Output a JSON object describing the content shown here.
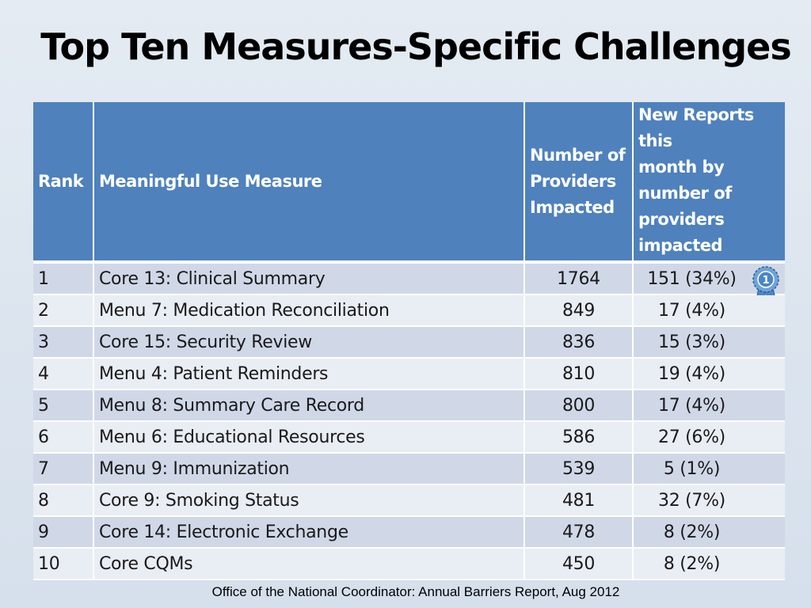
{
  "title": "Top Ten Measures-Specific Challenges",
  "table": {
    "headers": {
      "rank": "Rank",
      "measure": "Meaningful Use Measure",
      "providers": [
        "Number of",
        "Providers",
        "Impacted"
      ],
      "new_reports": [
        "New Reports this",
        "month by",
        "number of",
        "providers",
        "impacted"
      ]
    },
    "rows": [
      {
        "rank": "1",
        "measure": "Core 13: Clinical Summary",
        "providers": "1764",
        "new_reports": "151 (34%)"
      },
      {
        "rank": "2",
        "measure": "Menu 7: Medication Reconciliation",
        "providers": "849",
        "new_reports": "17 (4%)"
      },
      {
        "rank": "3",
        "measure": "Core 15: Security Review",
        "providers": "836",
        "new_reports": "15 (3%)"
      },
      {
        "rank": "4",
        "measure": "Menu 4: Patient Reminders",
        "providers": "810",
        "new_reports": "19 (4%)"
      },
      {
        "rank": "5",
        "measure": "Menu 8: Summary Care Record",
        "providers": "800",
        "new_reports": "17 (4%)"
      },
      {
        "rank": "6",
        "measure": "Menu 6: Educational Resources",
        "providers": "586",
        "new_reports": "27 (6%)"
      },
      {
        "rank": "7",
        "measure": "Menu 9: Immunization",
        "providers": "539",
        "new_reports": "5 (1%)"
      },
      {
        "rank": "8",
        "measure": "Core 9: Smoking Status",
        "providers": "481",
        "new_reports": "32 (7%)"
      },
      {
        "rank": "9",
        "measure": "Core 14: Electronic Exchange",
        "providers": "478",
        "new_reports": "8 (2%)"
      },
      {
        "rank": "10",
        "measure": "Core CQMs",
        "providers": "450",
        "new_reports": "8 (2%)"
      }
    ]
  },
  "ribbon": {
    "icon": "award-ribbon-icon",
    "label": "1",
    "color": "#4a86c8"
  },
  "colors": {
    "header": "#4f81bd",
    "row_odd": "#d0d8e8",
    "row_even": "#e9edf4"
  },
  "footer": "Office of the National Coordinator: Annual Barriers Report, Aug 2012"
}
